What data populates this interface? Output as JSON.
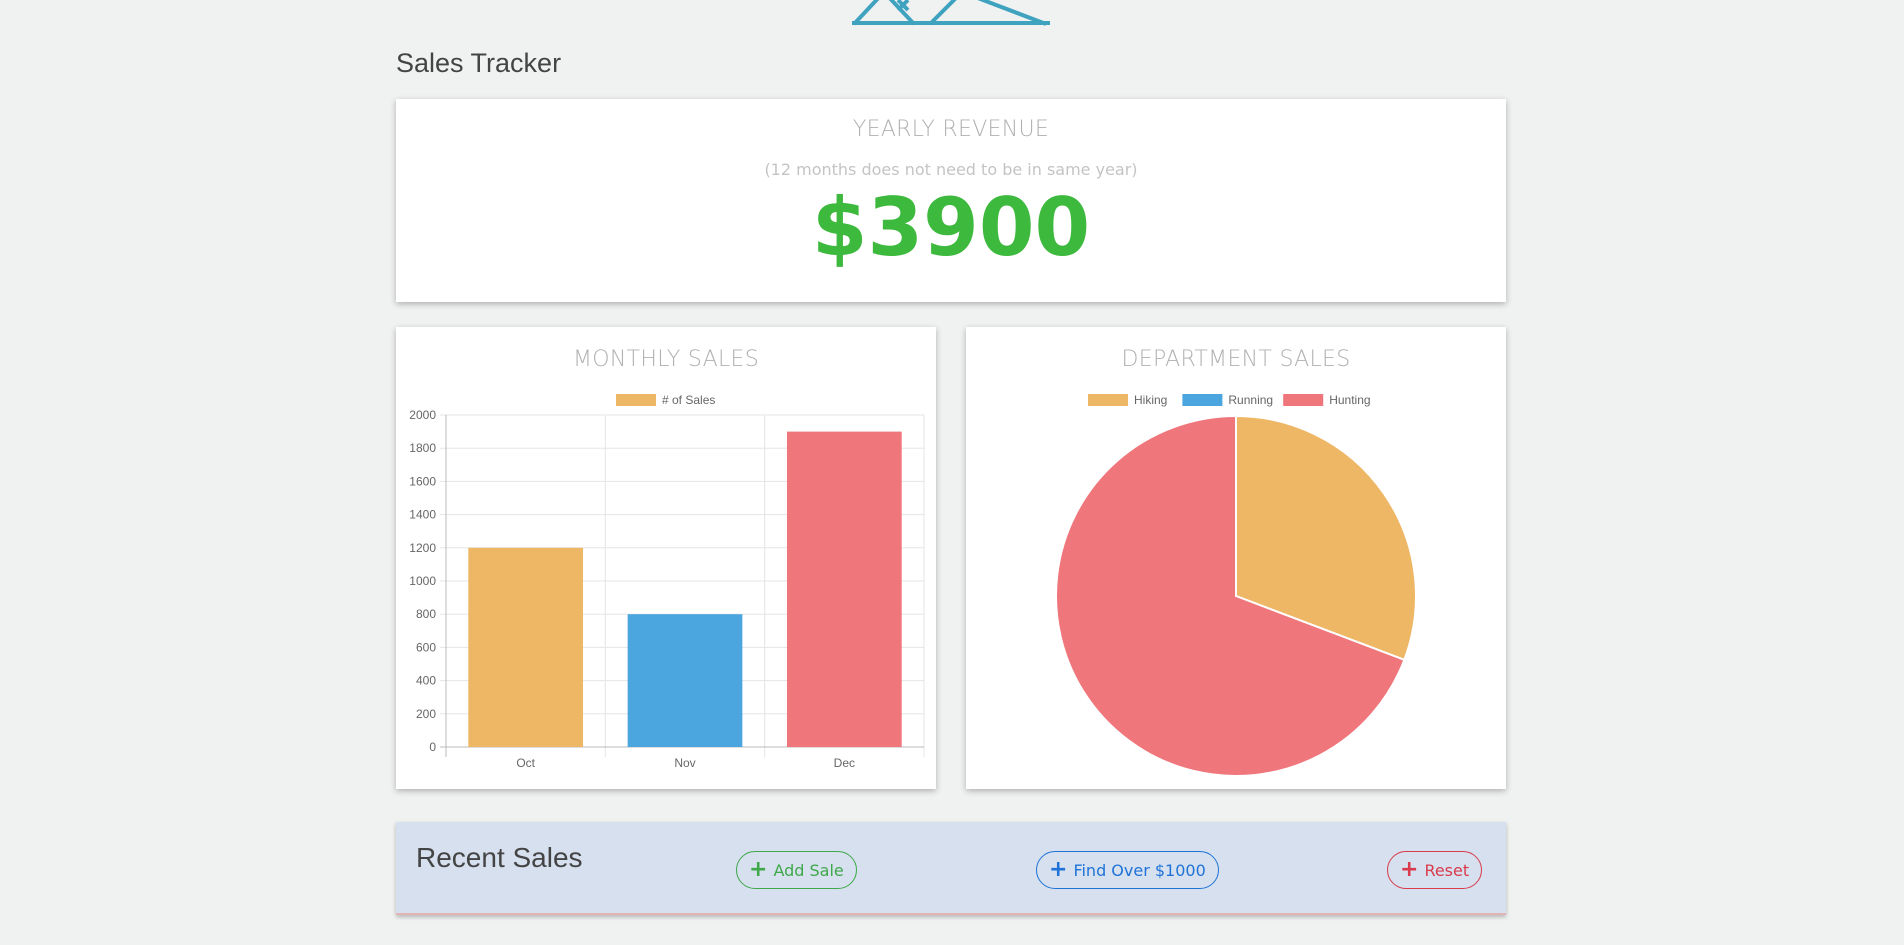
{
  "app": {
    "title": "Sales Tracker"
  },
  "revenue": {
    "title": "YEARLY REVENUE",
    "subtitle": "(12 months does not need to be in same year)",
    "value": "$3900"
  },
  "monthly": {
    "title": "MONTHLY SALES",
    "legend_label": "# of Sales"
  },
  "department": {
    "title": "DEPARTMENT SALES"
  },
  "chart_data": [
    {
      "type": "bar",
      "categories": [
        "Oct",
        "Nov",
        "Dec"
      ],
      "series": [
        {
          "name": "# of Sales",
          "values": [
            1200,
            800,
            1900
          ]
        }
      ],
      "colors": [
        "#eeb766",
        "#4ba6e0",
        "#ef767b"
      ],
      "ylim": [
        0,
        2000
      ],
      "yticks": [
        0,
        200,
        400,
        600,
        800,
        1000,
        1200,
        1400,
        1600,
        1800,
        2000
      ],
      "grid": true,
      "legend": "top"
    },
    {
      "type": "pie",
      "labels": [
        "Hiking",
        "Running",
        "Hunting"
      ],
      "values": [
        1200,
        0,
        2700
      ],
      "colors": [
        "#eeb766",
        "#4ba6e0",
        "#ef767b"
      ],
      "legend": "top"
    }
  ],
  "recent": {
    "title": "Recent Sales",
    "add_label": "Add Sale",
    "find_label": "Find Over $1000",
    "reset_label": "Reset",
    "add_icon": "plus-icon",
    "find_icon": "plus-icon",
    "reset_icon": "plus-icon"
  },
  "colors": {
    "accent_green": "#3db93d",
    "button_green": "#3fa84a",
    "button_blue": "#1f73d8",
    "button_red": "#d93b4c",
    "logo": "#3fa3c0"
  }
}
